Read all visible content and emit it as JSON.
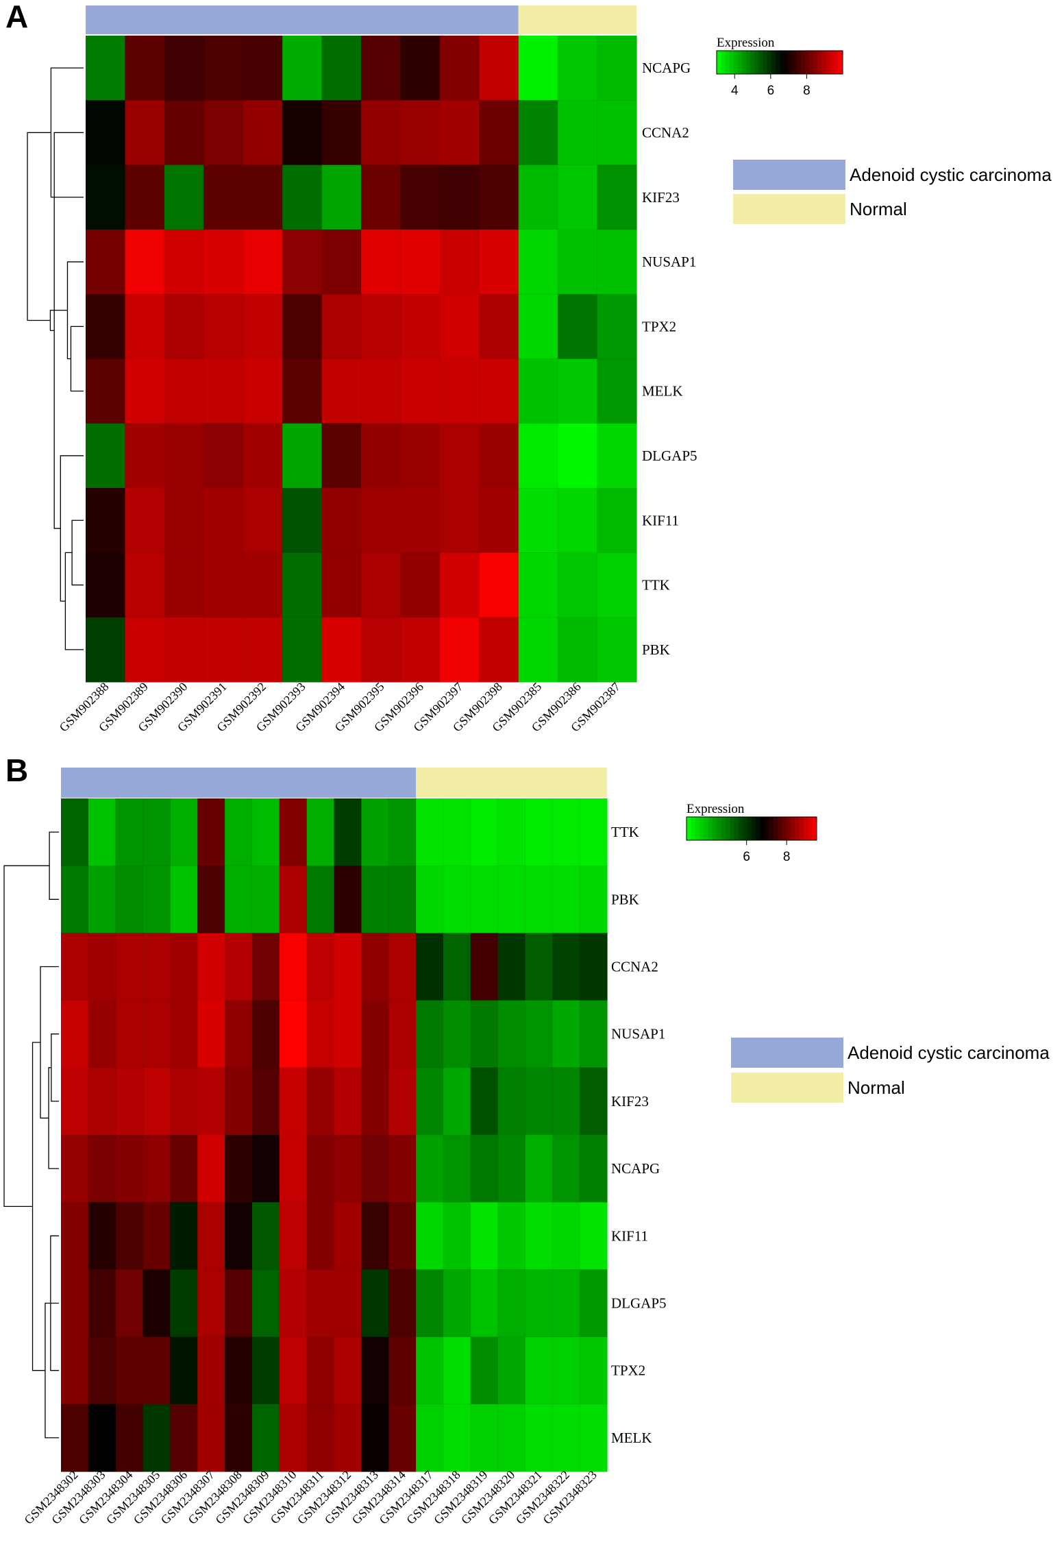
{
  "colors": {
    "low": "#00ff00",
    "mid": "#000000",
    "high": "#ff0000",
    "adenoid": "#97a9d8",
    "normal": "#f2eea6"
  },
  "chart_data": [
    {
      "type": "heatmap",
      "panel": "A",
      "title": "",
      "legend": {
        "title": "Expression",
        "ticks": [
          4,
          6,
          8
        ],
        "range": [
          3,
          10
        ],
        "midpoint": 6.7,
        "groups": [
          {
            "label": "Adenoid cystic carcinoma",
            "color": "#97a9d8"
          },
          {
            "label": "Normal",
            "color": "#f2eea6"
          }
        ]
      },
      "group_bar": [
        {
          "group": "Adenoid cystic carcinoma",
          "count": 11
        },
        {
          "group": "Normal",
          "count": 3
        }
      ],
      "columns": [
        "GSM902388",
        "GSM902389",
        "GSM902390",
        "GSM902391",
        "GSM902392",
        "GSM902393",
        "GSM902394",
        "GSM902395",
        "GSM902396",
        "GSM902397",
        "GSM902398",
        "GSM902385",
        "GSM902386",
        "GSM902387"
      ],
      "rows": [
        "NCAPG",
        "CCNA2",
        "KIF23",
        "NUSAP1",
        "TPX2",
        "MELK",
        "DLGAP5",
        "KIF11",
        "TTK",
        "PBK"
      ],
      "values": [
        [
          4.9,
          7.9,
          7.5,
          7.7,
          7.6,
          4.2,
          5.1,
          7.8,
          7.3,
          8.4,
          9.2,
          3.2,
          3.8,
          4.0
        ],
        [
          6.6,
          8.7,
          8.0,
          8.3,
          8.6,
          7.0,
          7.4,
          8.6,
          8.7,
          8.8,
          8.1,
          4.8,
          3.9,
          3.9
        ],
        [
          6.5,
          7.9,
          5.0,
          7.9,
          7.9,
          5.1,
          4.3,
          8.1,
          7.6,
          7.5,
          7.7,
          4.0,
          3.8,
          4.6
        ],
        [
          8.2,
          9.8,
          9.4,
          9.5,
          9.7,
          8.5,
          8.3,
          9.6,
          9.6,
          9.3,
          9.5,
          3.6,
          3.9,
          3.9
        ],
        [
          7.4,
          9.3,
          8.9,
          9.1,
          9.2,
          7.7,
          8.9,
          9.1,
          9.2,
          9.4,
          8.9,
          3.6,
          5.0,
          4.5
        ],
        [
          7.9,
          9.4,
          9.2,
          9.2,
          9.3,
          7.9,
          9.2,
          9.2,
          9.3,
          9.3,
          9.3,
          3.9,
          3.8,
          4.5
        ],
        [
          5.1,
          8.8,
          8.7,
          8.5,
          8.8,
          4.3,
          7.9,
          8.6,
          8.7,
          8.9,
          8.7,
          3.3,
          3.1,
          3.6
        ],
        [
          7.2,
          9.0,
          8.7,
          8.8,
          8.9,
          5.5,
          8.6,
          8.8,
          8.8,
          8.9,
          8.8,
          3.5,
          3.6,
          4.0
        ],
        [
          7.1,
          9.1,
          8.7,
          8.8,
          8.8,
          5.1,
          8.6,
          8.9,
          8.6,
          9.4,
          9.9,
          3.6,
          3.8,
          3.7
        ],
        [
          5.8,
          9.3,
          9.2,
          9.2,
          9.2,
          5.1,
          9.5,
          9.1,
          9.2,
          9.8,
          9.2,
          3.6,
          4.0,
          3.8
        ]
      ]
    },
    {
      "type": "heatmap",
      "panel": "B",
      "title": "",
      "legend": {
        "title": "Expression",
        "ticks": [
          6,
          8
        ],
        "range": [
          3,
          9.5
        ],
        "midpoint": 6.8,
        "groups": [
          {
            "label": "Adenoid cystic carcinoma",
            "color": "#97a9d8"
          },
          {
            "label": "Normal",
            "color": "#f2eea6"
          }
        ]
      },
      "group_bar": [
        {
          "group": "Adenoid cystic carcinoma",
          "count": 13
        },
        {
          "group": "Normal",
          "count": 7
        }
      ],
      "columns": [
        "GSM2348302",
        "GSM2348303",
        "GSM2348304",
        "GSM2348305",
        "GSM2348306",
        "GSM2348307",
        "GSM2348308",
        "GSM2348309",
        "GSM2348310",
        "GSM2348311",
        "GSM2348312",
        "GSM2348313",
        "GSM2348314",
        "GSM2348317",
        "GSM2348318",
        "GSM2348319",
        "GSM2348320",
        "GSM2348321",
        "GSM2348322",
        "GSM2348323"
      ],
      "rows": [
        "TTK",
        "PBK",
        "CCNA2",
        "NUSAP1",
        "KIF23",
        "NCAPG",
        "KIF11",
        "DLGAP5",
        "TPX2",
        "MELK"
      ],
      "values": [
        [
          5.3,
          3.9,
          4.6,
          4.6,
          4.2,
          7.9,
          4.2,
          4.0,
          8.2,
          4.2,
          5.9,
          4.4,
          4.6,
          3.4,
          3.4,
          3.3,
          3.4,
          3.3,
          3.3,
          3.3
        ],
        [
          5.0,
          4.4,
          4.7,
          4.6,
          3.9,
          7.6,
          4.2,
          4.2,
          8.6,
          5.0,
          7.3,
          4.9,
          4.9,
          3.6,
          3.5,
          3.5,
          3.5,
          3.5,
          3.5,
          3.6
        ],
        [
          8.6,
          8.5,
          8.6,
          8.6,
          8.5,
          9.0,
          8.7,
          8.0,
          9.4,
          8.8,
          9.0,
          8.3,
          8.6,
          6.1,
          5.3,
          7.5,
          6.0,
          5.4,
          5.8,
          6.0
        ],
        [
          8.9,
          8.4,
          8.6,
          8.6,
          8.5,
          9.1,
          8.3,
          7.6,
          9.5,
          8.9,
          9.0,
          8.2,
          8.6,
          5.0,
          4.7,
          5.0,
          4.7,
          4.6,
          4.3,
          4.6
        ],
        [
          8.8,
          8.6,
          8.7,
          8.8,
          8.6,
          8.7,
          8.2,
          7.7,
          8.9,
          8.4,
          8.7,
          8.2,
          8.7,
          4.8,
          4.3,
          5.6,
          4.9,
          4.8,
          4.8,
          5.4
        ],
        [
          8.4,
          8.1,
          8.2,
          8.3,
          7.9,
          9.0,
          7.3,
          7.0,
          8.9,
          8.2,
          8.3,
          8.0,
          8.2,
          4.4,
          4.6,
          5.0,
          4.8,
          4.2,
          4.6,
          4.9
        ],
        [
          8.2,
          7.2,
          7.6,
          7.9,
          6.4,
          8.6,
          7.0,
          5.5,
          8.8,
          8.2,
          8.5,
          7.4,
          7.9,
          3.6,
          3.9,
          3.4,
          3.8,
          3.5,
          3.6,
          3.4
        ],
        [
          8.2,
          7.5,
          8.0,
          7.1,
          5.9,
          8.6,
          7.7,
          5.3,
          8.7,
          8.5,
          8.5,
          6.0,
          7.6,
          4.8,
          4.3,
          3.9,
          4.2,
          4.1,
          4.1,
          4.5
        ],
        [
          8.2,
          7.6,
          7.8,
          7.8,
          6.5,
          8.5,
          7.2,
          5.9,
          8.8,
          8.3,
          8.6,
          7.0,
          7.8,
          3.9,
          3.5,
          4.7,
          4.3,
          3.7,
          3.7,
          3.8
        ],
        [
          7.6,
          6.8,
          7.5,
          6.0,
          7.7,
          8.5,
          7.3,
          5.3,
          8.6,
          8.3,
          8.5,
          6.9,
          7.9,
          3.7,
          3.5,
          3.7,
          3.7,
          3.5,
          3.5,
          3.5
        ]
      ]
    }
  ]
}
